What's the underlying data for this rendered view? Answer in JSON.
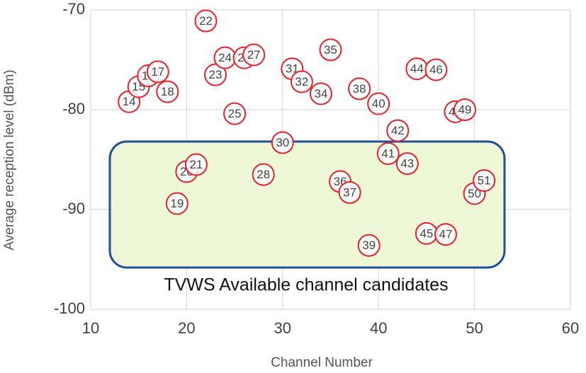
{
  "chart_data": {
    "type": "scatter",
    "x_label": "Channel Number",
    "y_label": "Average reception level (dBm)",
    "annotation": "TVWS Available channel candidates",
    "x": [
      14,
      15,
      16,
      17,
      18,
      19,
      20,
      21,
      22,
      23,
      24,
      25,
      26,
      27,
      28,
      30,
      31,
      32,
      34,
      35,
      36,
      37,
      38,
      39,
      40,
      41,
      42,
      43,
      44,
      45,
      46,
      47,
      48,
      49,
      50,
      51
    ],
    "values": [
      -79.2,
      -77.7,
      -76.6,
      -76.2,
      -78.2,
      -89.4,
      -86.2,
      -85.5,
      -71.1,
      -76.5,
      -74.8,
      -80.4,
      -74.8,
      -74.5,
      -86.5,
      -83.3,
      -75.9,
      -77.2,
      -78.4,
      -74.0,
      -87.2,
      -88.3,
      -77.9,
      -93.6,
      -79.4,
      -84.4,
      -82.1,
      -85.4,
      -75.9,
      -92.4,
      -76.0,
      -92.5,
      -80.2,
      -80.0,
      -88.4,
      -87.1
    ],
    "color": "#e8202a",
    "xlim": [
      10,
      60
    ],
    "xticks": [
      10,
      20,
      30,
      40,
      50,
      60
    ],
    "ylim": [
      -100,
      -70
    ],
    "yticks": [
      -100,
      -90,
      -80,
      -70
    ],
    "grid": true
  }
}
